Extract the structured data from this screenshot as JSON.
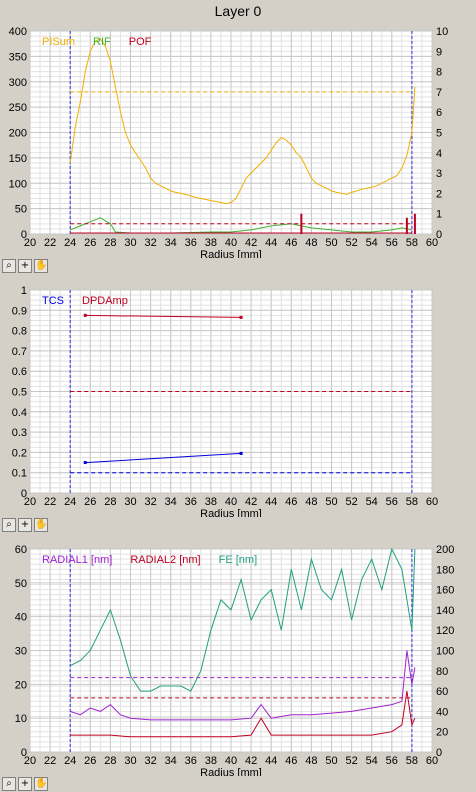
{
  "window": {
    "title": "Layer 0"
  },
  "icons": {
    "zoom": "zoom-icon",
    "crosshair": "crosshair-icon",
    "pan": "hand-pan-icon"
  },
  "colors": {
    "plot_bg": "#ffffff",
    "grid": "#c8c8c8",
    "window_bg": "#d4d0c8",
    "pisum": "#f0b000",
    "rif": "#40b030",
    "pof": "#c00020",
    "tcs": "#0000dd",
    "dpdamp": "#c00020",
    "radial1": "#a020d0",
    "radial2": "#c00020",
    "fe": "#20a080"
  },
  "chart_data": [
    {
      "type": "line",
      "xlabel": "Radius [mm]",
      "xlim": [
        20,
        60
      ],
      "ylim": [
        0,
        400
      ],
      "y2lim": [
        0,
        10
      ],
      "xticks": [
        20,
        22,
        24,
        26,
        28,
        30,
        32,
        34,
        36,
        38,
        40,
        42,
        44,
        46,
        48,
        50,
        52,
        54,
        56,
        58,
        60
      ],
      "yticks": [
        0,
        50,
        100,
        150,
        200,
        250,
        300,
        350,
        400
      ],
      "y2ticks": [
        0,
        1,
        2,
        3,
        4,
        5,
        6,
        7,
        8,
        9,
        10
      ],
      "grid": true,
      "legend": [
        "PISum",
        "RIF",
        "POF"
      ],
      "vlines": [
        24,
        58
      ],
      "series": [
        {
          "name": "PISum",
          "axis": "left",
          "x": [
            24,
            24.5,
            25,
            25.5,
            26,
            26.5,
            27,
            27.5,
            28,
            28.5,
            29,
            29.5,
            30,
            30.5,
            31,
            31.5,
            32,
            32.5,
            33,
            33.5,
            34,
            34.5,
            35,
            35.5,
            36,
            36.5,
            37,
            37.5,
            38,
            38.5,
            39,
            39.5,
            40,
            40.5,
            41,
            41.5,
            42,
            42.5,
            43,
            43.5,
            44,
            44.5,
            45,
            45.5,
            46,
            46.5,
            47,
            47.5,
            48,
            48.5,
            49,
            49.5,
            50,
            50.5,
            51,
            51.5,
            52,
            52.5,
            53,
            53.5,
            54,
            54.5,
            55,
            55.5,
            56,
            56.5,
            57,
            57.5,
            58,
            58.3
          ],
          "y": [
            140,
            210,
            260,
            320,
            360,
            380,
            385,
            370,
            340,
            290,
            240,
            200,
            175,
            160,
            145,
            130,
            110,
            100,
            95,
            90,
            85,
            82,
            80,
            78,
            75,
            72,
            70,
            68,
            66,
            64,
            62,
            60,
            62,
            70,
            90,
            110,
            120,
            130,
            140,
            150,
            165,
            180,
            190,
            185,
            175,
            160,
            150,
            130,
            110,
            100,
            95,
            90,
            85,
            82,
            80,
            78,
            82,
            85,
            88,
            90,
            92,
            95,
            100,
            105,
            110,
            115,
            130,
            155,
            200,
            290
          ]
        },
        {
          "name": "RIF",
          "axis": "right",
          "x": [
            24,
            25,
            26,
            27,
            28,
            28.5,
            30,
            34,
            38,
            40,
            42,
            44,
            46,
            47,
            48,
            50,
            52,
            54,
            56,
            57,
            58
          ],
          "y": [
            0.2,
            0.4,
            0.6,
            0.8,
            0.5,
            0.1,
            0.05,
            0.05,
            0.1,
            0.1,
            0.2,
            0.4,
            0.5,
            0.4,
            0.3,
            0.2,
            0.1,
            0.1,
            0.2,
            0.3,
            0.2
          ]
        },
        {
          "name": "POF",
          "axis": "right",
          "x": [
            24,
            58
          ],
          "y": [
            0.05,
            0.05
          ],
          "spikes": [
            [
              47,
              1.0
            ],
            [
              57.5,
              0.8
            ],
            [
              58.3,
              1.0
            ]
          ]
        },
        {
          "name": "PISum threshold",
          "axis": "left",
          "x": [
            24,
            58
          ],
          "y": [
            280,
            280
          ],
          "style": "dashed"
        },
        {
          "name": "POF threshold",
          "axis": "right",
          "x": [
            24,
            58
          ],
          "y": [
            0.5,
            0.5
          ],
          "style": "dashed"
        }
      ]
    },
    {
      "type": "line",
      "xlabel": "Radius [mm]",
      "xlim": [
        20,
        60
      ],
      "ylim": [
        0,
        1
      ],
      "xticks": [
        20,
        22,
        24,
        26,
        28,
        30,
        32,
        34,
        36,
        38,
        40,
        42,
        44,
        46,
        48,
        50,
        52,
        54,
        56,
        58,
        60
      ],
      "yticks": [
        0,
        0.1,
        0.2,
        0.3,
        0.4,
        0.5,
        0.6,
        0.7,
        0.8,
        0.9,
        1
      ],
      "grid": true,
      "legend": [
        "TCS",
        "DPDAmp"
      ],
      "vlines": [
        24,
        58
      ],
      "series": [
        {
          "name": "TCS",
          "x": [
            25.5,
            41
          ],
          "y": [
            0.15,
            0.195
          ]
        },
        {
          "name": "DPDAmp",
          "x": [
            25.5,
            41
          ],
          "y": [
            0.875,
            0.865
          ]
        },
        {
          "name": "DPDAmp threshold",
          "x": [
            24,
            58
          ],
          "y": [
            0.5,
            0.5
          ],
          "style": "dashed"
        },
        {
          "name": "TCS threshold",
          "x": [
            24,
            58
          ],
          "y": [
            0.1,
            0.1
          ],
          "style": "dashed"
        }
      ]
    },
    {
      "type": "line",
      "xlabel": "Radius [mm]",
      "xlim": [
        20,
        60
      ],
      "ylim": [
        0,
        60
      ],
      "y2lim": [
        0,
        200
      ],
      "xticks": [
        20,
        22,
        24,
        26,
        28,
        30,
        32,
        34,
        36,
        38,
        40,
        42,
        44,
        46,
        48,
        50,
        52,
        54,
        56,
        58,
        60
      ],
      "yticks": [
        0,
        10,
        20,
        30,
        40,
        50,
        60
      ],
      "y2ticks": [
        0,
        20,
        40,
        60,
        80,
        100,
        120,
        140,
        160,
        180,
        200
      ],
      "grid": true,
      "legend": [
        "RADIAL1 [nm]",
        "RADIAL2 [nm]",
        "FE [nm]"
      ],
      "vlines": [
        24,
        58
      ],
      "series": [
        {
          "name": "RADIAL1 [nm]",
          "axis": "left",
          "x": [
            24,
            25,
            26,
            27,
            28,
            29,
            30,
            32,
            34,
            36,
            38,
            40,
            42,
            43,
            44,
            46,
            48,
            50,
            52,
            54,
            56,
            57,
            57.5,
            58,
            58.3
          ],
          "y": [
            12,
            11,
            13,
            12,
            14,
            11,
            10,
            9.5,
            9.5,
            9.5,
            9.5,
            9.5,
            10,
            14,
            10,
            11,
            11,
            11.5,
            12,
            13,
            14,
            15,
            30,
            20,
            25
          ]
        },
        {
          "name": "RADIAL2 [nm]",
          "axis": "left",
          "x": [
            24,
            26,
            28,
            30,
            32,
            34,
            36,
            38,
            40,
            42,
            43,
            44,
            46,
            48,
            50,
            52,
            54,
            56,
            57,
            57.5,
            58,
            58.3
          ],
          "y": [
            5,
            5,
            5,
            4.5,
            4.5,
            4.5,
            4.5,
            4.5,
            4.5,
            5,
            10,
            5,
            5,
            5,
            5,
            5,
            5,
            6,
            8,
            18,
            8,
            10
          ]
        },
        {
          "name": "FE [nm]",
          "axis": "right",
          "x": [
            24,
            25,
            26,
            27,
            28,
            29,
            30,
            31,
            32,
            33,
            34,
            35,
            36,
            37,
            38,
            39,
            40,
            41,
            42,
            43,
            44,
            45,
            46,
            47,
            48,
            49,
            50,
            51,
            52,
            53,
            54,
            55,
            56,
            57,
            58,
            58.3
          ],
          "y": [
            85,
            90,
            100,
            120,
            140,
            110,
            75,
            60,
            60,
            65,
            65,
            65,
            60,
            80,
            120,
            150,
            140,
            170,
            130,
            150,
            160,
            120,
            180,
            140,
            190,
            160,
            150,
            180,
            130,
            170,
            190,
            160,
            200,
            180,
            120,
            200
          ]
        },
        {
          "name": "RADIAL1 threshold",
          "axis": "left",
          "x": [
            24,
            58
          ],
          "y": [
            22,
            22
          ],
          "style": "dashed"
        },
        {
          "name": "RADIAL2 threshold",
          "axis": "left",
          "x": [
            24,
            58
          ],
          "y": [
            16,
            16
          ],
          "style": "dashed"
        }
      ]
    }
  ]
}
